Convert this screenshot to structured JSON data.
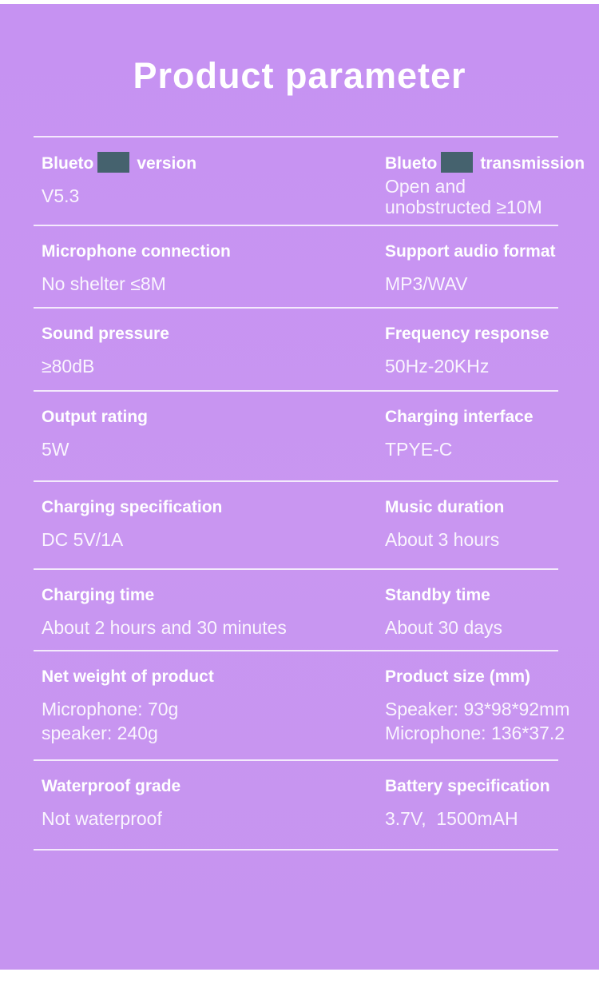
{
  "title": "Product parameter",
  "theme": {
    "background": "#c794f1",
    "censor_box": "#45626e",
    "divider": "#ece4f8",
    "label_text": "#ffffff",
    "value_text": "#f3eefb"
  },
  "rows": [
    {
      "cells": [
        {
          "label_start": "Blueto",
          "censored": true,
          "label_end": "version",
          "values": [
            "V5.3"
          ]
        },
        {
          "label_start": "Blueto",
          "censored": true,
          "label_end": "transmission",
          "values": [
            "Open and",
            "unobstructed ≥10M"
          ]
        }
      ]
    },
    {
      "cells": [
        {
          "label_start": "Microphone connection",
          "censored": false,
          "label_end": "",
          "values": [
            "No shelter ≤8M"
          ]
        },
        {
          "label_start": "Support audio format",
          "censored": false,
          "label_end": "",
          "values": [
            "MP3/WAV"
          ]
        }
      ]
    },
    {
      "cells": [
        {
          "label_start": "Sound pressure",
          "censored": false,
          "label_end": "",
          "values": [
            "≥80dB"
          ]
        },
        {
          "label_start": "Frequency response",
          "censored": false,
          "label_end": "",
          "values": [
            "50Hz-20KHz"
          ]
        }
      ]
    },
    {
      "cells": [
        {
          "label_start": "Output rating",
          "censored": false,
          "label_end": "",
          "values": [
            "5W"
          ]
        },
        {
          "label_start": "Charging interface",
          "censored": false,
          "label_end": "",
          "values": [
            "TPYE-C"
          ]
        }
      ]
    },
    {
      "cells": [
        {
          "label_start": "Charging specification",
          "censored": false,
          "label_end": "",
          "values": [
            "DC 5V/1A"
          ]
        },
        {
          "label_start": "Music duration",
          "censored": false,
          "label_end": "",
          "values": [
            "About 3 hours"
          ]
        }
      ]
    },
    {
      "cells": [
        {
          "label_start": "Charging time",
          "censored": false,
          "label_end": "",
          "values": [
            "About 2 hours and 30 minutes"
          ]
        },
        {
          "label_start": "Standby time",
          "censored": false,
          "label_end": "",
          "values": [
            "About 30 days"
          ]
        }
      ]
    },
    {
      "cells": [
        {
          "label_start": "Net weight of product",
          "censored": false,
          "label_end": "",
          "values": [
            "Microphone: 70g",
            "speaker: 240g"
          ]
        },
        {
          "label_start": "Product size (mm)",
          "censored": false,
          "label_end": "",
          "values": [
            "Speaker: 93*98*92mm",
            "Microphone: 136*37.2"
          ]
        }
      ]
    },
    {
      "cells": [
        {
          "label_start": "Waterproof grade",
          "censored": false,
          "label_end": "",
          "values": [
            "Not waterproof"
          ]
        },
        {
          "label_start": "Battery specification",
          "censored": false,
          "label_end": "",
          "values": [
            "3.7V,  1500mAH"
          ]
        }
      ]
    }
  ]
}
